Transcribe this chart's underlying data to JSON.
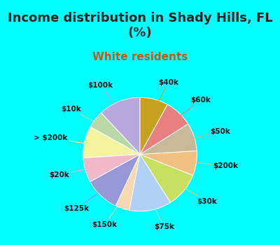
{
  "title": "Income distribution in Shady Hills, FL\n(%)",
  "subtitle": "White residents",
  "bg_color": "#00FFFF",
  "chart_bg_color": "#dff0e8",
  "labels": [
    "$100k",
    "$10k",
    "> $200k",
    "$20k",
    "$125k",
    "$150k",
    "$75k",
    "$30k",
    "$200k",
    "$50k",
    "$60k",
    "$40k"
  ],
  "values": [
    12,
    5,
    9,
    7,
    10,
    4,
    12,
    10,
    7,
    8,
    8,
    8
  ],
  "colors": [
    "#b8a8e0",
    "#b8d8a8",
    "#f4f4a0",
    "#f0b8c8",
    "#9898d8",
    "#f8d8b0",
    "#b0d0f8",
    "#c8e060",
    "#f0c080",
    "#c8b898",
    "#e88080",
    "#c8a020"
  ],
  "title_fontsize": 13,
  "subtitle_fontsize": 11,
  "title_color": "#222222",
  "subtitle_color": "#b06020",
  "label_fontsize": 7.5,
  "startangle": 90
}
